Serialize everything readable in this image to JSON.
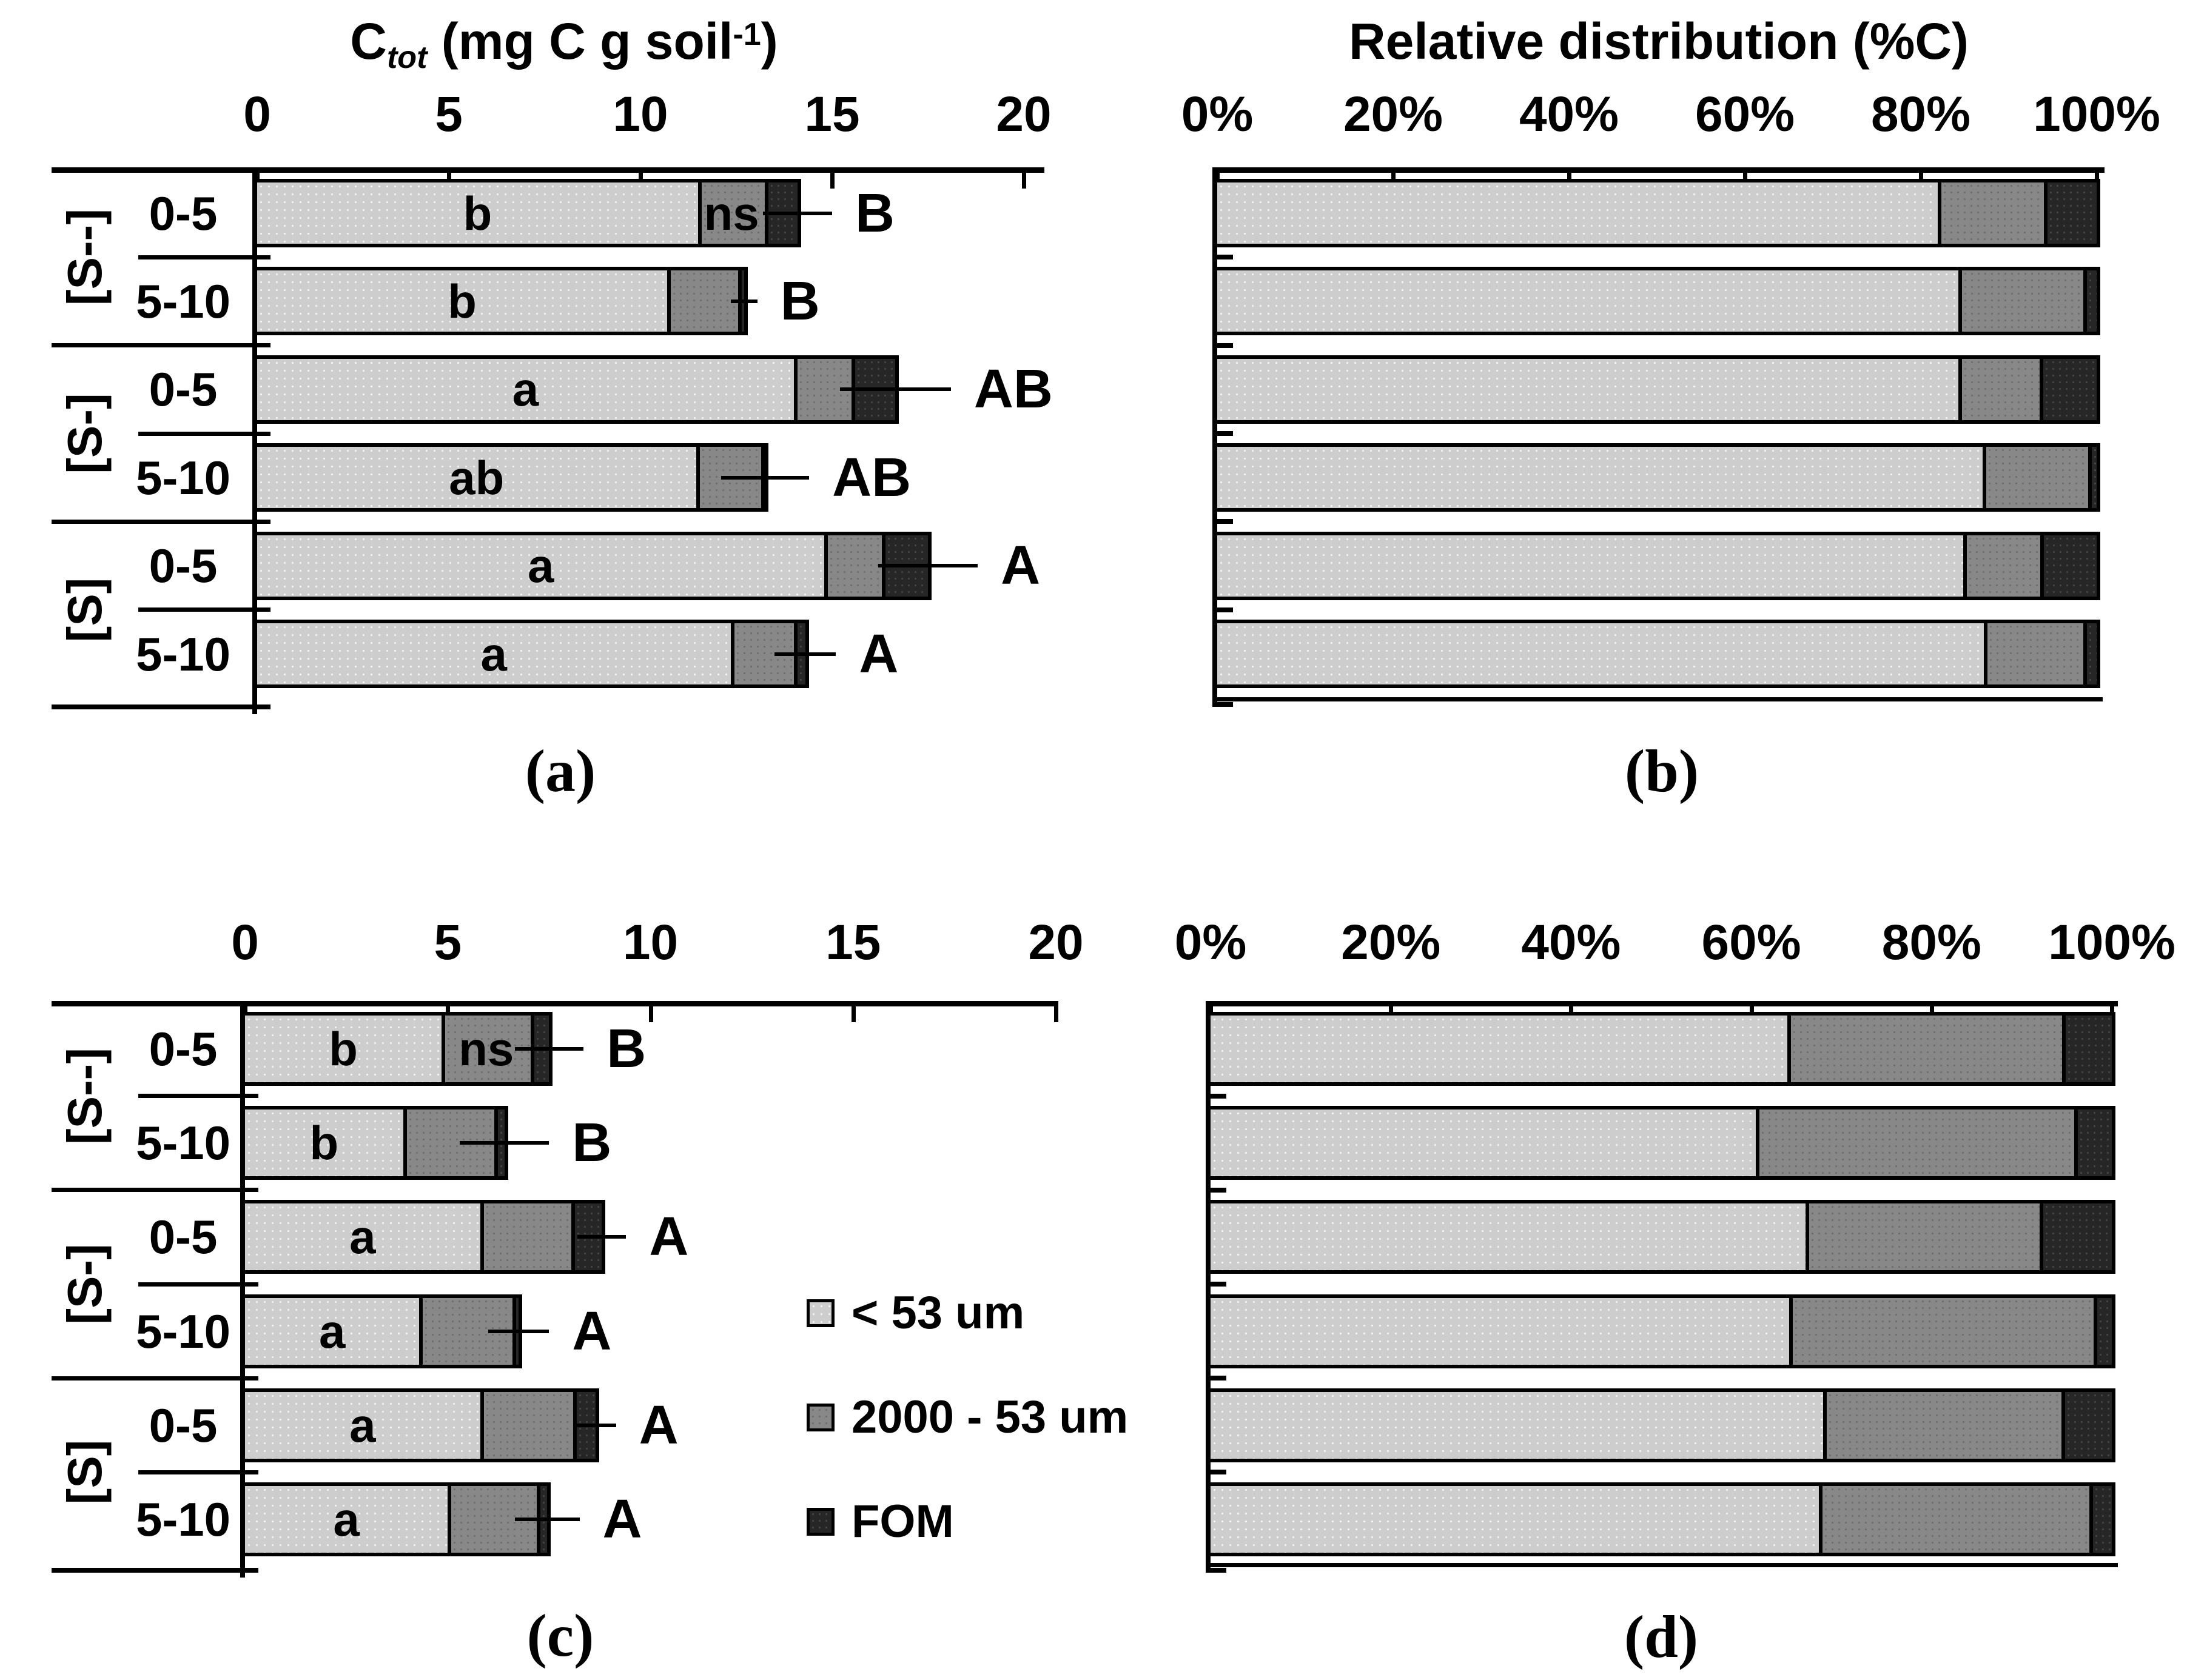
{
  "chart_data": [
    {
      "id": "a",
      "type": "bar",
      "orientation": "horizontal-stacked",
      "caption": "(a)",
      "title_parts": [
        {
          "text": "C"
        },
        {
          "text": "tot",
          "style": "sub"
        },
        {
          "text": " (mg C g soil"
        },
        {
          "text": "-1",
          "style": "sup"
        },
        {
          "text": ")"
        }
      ],
      "xlim": [
        0,
        20
      ],
      "xticks": [
        0,
        5,
        10,
        15,
        20
      ],
      "xtick_labels": [
        "0",
        "5",
        "10",
        "15",
        "20"
      ],
      "series_names": [
        "< 53 um",
        "2000 - 53 um",
        "FOM"
      ],
      "rows": [
        {
          "group": "[S--]",
          "depth": "0-5",
          "values": [
            11.5,
            1.75,
            0.85
          ],
          "letter": "b",
          "letter2": "ns",
          "sig": "B",
          "err": 0.9
        },
        {
          "group": "[S--]",
          "depth": "5-10",
          "values": [
            10.7,
            1.85,
            0.15
          ],
          "letter": "b",
          "sig": "B",
          "err": 0.35
        },
        {
          "group": "[S-]",
          "depth": "0-5",
          "values": [
            14.0,
            1.5,
            1.15
          ],
          "letter": "a",
          "sig": "AB",
          "err": 1.45
        },
        {
          "group": "[S-]",
          "depth": "5-10",
          "values": [
            11.45,
            1.7,
            0.1
          ],
          "letter": "ab",
          "sig": "AB",
          "err": 1.15
        },
        {
          "group": "[S]",
          "depth": "0-5",
          "values": [
            14.8,
            1.5,
            1.2
          ],
          "letter": "a",
          "sig": "A",
          "err": 1.3
        },
        {
          "group": "[S]",
          "depth": "5-10",
          "values": [
            12.35,
            1.65,
            0.3
          ],
          "letter": "a",
          "sig": "A",
          "err": 0.8
        }
      ]
    },
    {
      "id": "b",
      "type": "bar",
      "orientation": "horizontal-stacked-percent",
      "caption": "(b)",
      "title": "Relative distribution (%C)",
      "xlim": [
        0,
        100
      ],
      "xticks": [
        0,
        20,
        40,
        60,
        80,
        100
      ],
      "xtick_labels": [
        "0%",
        "20%",
        "40%",
        "60%",
        "80%",
        "100%"
      ],
      "series_names": [
        "< 53 um",
        "2000 - 53 um",
        "FOM"
      ],
      "rows": [
        {
          "group": "[S--]",
          "depth": "0-5",
          "values": [
            81.9,
            12.1,
            6.0
          ]
        },
        {
          "group": "[S--]",
          "depth": "5-10",
          "values": [
            84.3,
            14.2,
            1.5
          ]
        },
        {
          "group": "[S-]",
          "depth": "0-5",
          "values": [
            84.3,
            9.2,
            6.5
          ]
        },
        {
          "group": "[S-]",
          "depth": "5-10",
          "values": [
            87.0,
            12.0,
            1.0
          ]
        },
        {
          "group": "[S]",
          "depth": "0-5",
          "values": [
            84.8,
            8.8,
            6.4
          ]
        },
        {
          "group": "[S]",
          "depth": "5-10",
          "values": [
            87.2,
            11.3,
            1.5
          ]
        }
      ]
    },
    {
      "id": "c",
      "type": "bar",
      "orientation": "horizontal-stacked",
      "caption": "(c)",
      "xlim": [
        0,
        20
      ],
      "xticks": [
        0,
        5,
        10,
        15,
        20
      ],
      "xtick_labels": [
        "0",
        "5",
        "10",
        "15",
        "20"
      ],
      "series_names": [
        "< 53 um",
        "2000 - 53 um",
        "FOM"
      ],
      "rows": [
        {
          "group": "[S--]",
          "depth": "0-5",
          "values": [
            4.85,
            2.2,
            0.45
          ],
          "letter": "b",
          "letter2": "ns",
          "sig": "B",
          "err": 0.85
        },
        {
          "group": "[S--]",
          "depth": "5-10",
          "values": [
            3.9,
            2.25,
            0.25
          ],
          "letter": "b",
          "sig": "B",
          "err": 1.1
        },
        {
          "group": "[S-]",
          "depth": "0-5",
          "values": [
            5.8,
            2.25,
            0.75
          ],
          "letter": "a",
          "sig": "A",
          "err": 0.6
        },
        {
          "group": "[S-]",
          "depth": "5-10",
          "values": [
            4.3,
            2.3,
            0.15
          ],
          "letter": "a",
          "sig": "A",
          "err": 0.75
        },
        {
          "group": "[S]",
          "depth": "0-5",
          "values": [
            5.8,
            2.3,
            0.55
          ],
          "letter": "a",
          "sig": "A",
          "err": 0.5
        },
        {
          "group": "[S]",
          "depth": "5-10",
          "values": [
            5.0,
            2.2,
            0.25
          ],
          "letter": "a",
          "sig": "A",
          "err": 0.8
        }
      ]
    },
    {
      "id": "d",
      "type": "bar",
      "orientation": "horizontal-stacked-percent",
      "caption": "(d)",
      "xlim": [
        0,
        100
      ],
      "xticks": [
        0,
        20,
        40,
        60,
        80,
        100
      ],
      "xtick_labels": [
        "0%",
        "20%",
        "40%",
        "60%",
        "80%",
        "100%"
      ],
      "series_names": [
        "< 53 um",
        "2000 - 53 um",
        "FOM"
      ],
      "rows": [
        {
          "group": "[S--]",
          "depth": "0-5",
          "values": [
            64.0,
            30.5,
            5.5
          ]
        },
        {
          "group": "[S--]",
          "depth": "5-10",
          "values": [
            60.5,
            35.3,
            4.2
          ]
        },
        {
          "group": "[S-]",
          "depth": "0-5",
          "values": [
            66.0,
            26.0,
            8.0
          ]
        },
        {
          "group": "[S-]",
          "depth": "5-10",
          "values": [
            64.2,
            33.8,
            2.0
          ]
        },
        {
          "group": "[S]",
          "depth": "0-5",
          "values": [
            68.0,
            26.4,
            5.6
          ]
        },
        {
          "group": "[S]",
          "depth": "5-10",
          "values": [
            67.5,
            30.0,
            2.5
          ]
        }
      ]
    }
  ],
  "legend": {
    "items": [
      {
        "label": "< 53 um",
        "series": "silt"
      },
      {
        "label": "2000 - 53 um",
        "series": "sand"
      },
      {
        "label": "FOM",
        "series": "fom"
      }
    ]
  },
  "colors": {
    "silt": "#cdcdcd",
    "sand": "#888888",
    "fom": "#262626",
    "axis": "#000000",
    "background": "#ffffff"
  }
}
